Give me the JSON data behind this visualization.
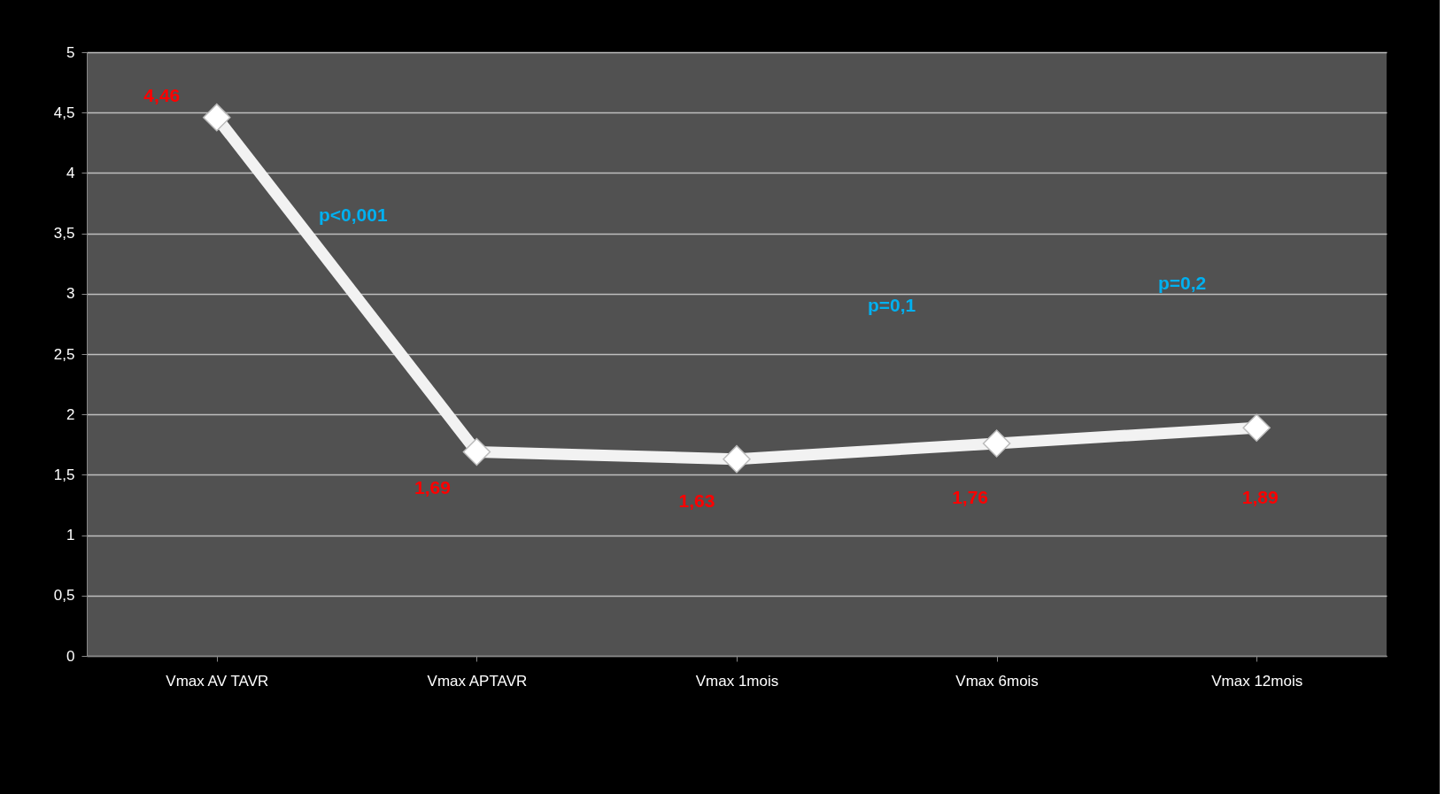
{
  "chart_data": {
    "type": "line",
    "categories": [
      "Vmax AV TAVR",
      "Vmax APTAVR",
      "Vmax 1mois",
      "Vmax 6mois",
      "Vmax 12mois"
    ],
    "series": [
      {
        "color": "#f2f2f2",
        "values": [
          4.46,
          1.69,
          1.63,
          1.76,
          1.89
        ],
        "value_labels": [
          "4,46",
          "1,69",
          "1,63",
          "1,76",
          "1,89"
        ]
      }
    ],
    "ylim": [
      0,
      5
    ],
    "yticks": [
      {
        "value": 0,
        "label": "0"
      },
      {
        "value": 0.5,
        "label": "0,5"
      },
      {
        "value": 1,
        "label": "1"
      },
      {
        "value": 1.5,
        "label": "1,5"
      },
      {
        "value": 2,
        "label": "2"
      },
      {
        "value": 2.5,
        "label": "2,5"
      },
      {
        "value": 3,
        "label": "3"
      },
      {
        "value": 3.5,
        "label": "3,5"
      },
      {
        "value": 4,
        "label": "4"
      },
      {
        "value": 4.5,
        "label": "4,5"
      },
      {
        "value": 5,
        "label": "5"
      }
    ],
    "grid": "y",
    "legend": false,
    "marker": "diamond",
    "line_style": "solid",
    "annotations": [
      "p<0,001",
      "p=0,1",
      "p=0,2"
    ]
  }
}
